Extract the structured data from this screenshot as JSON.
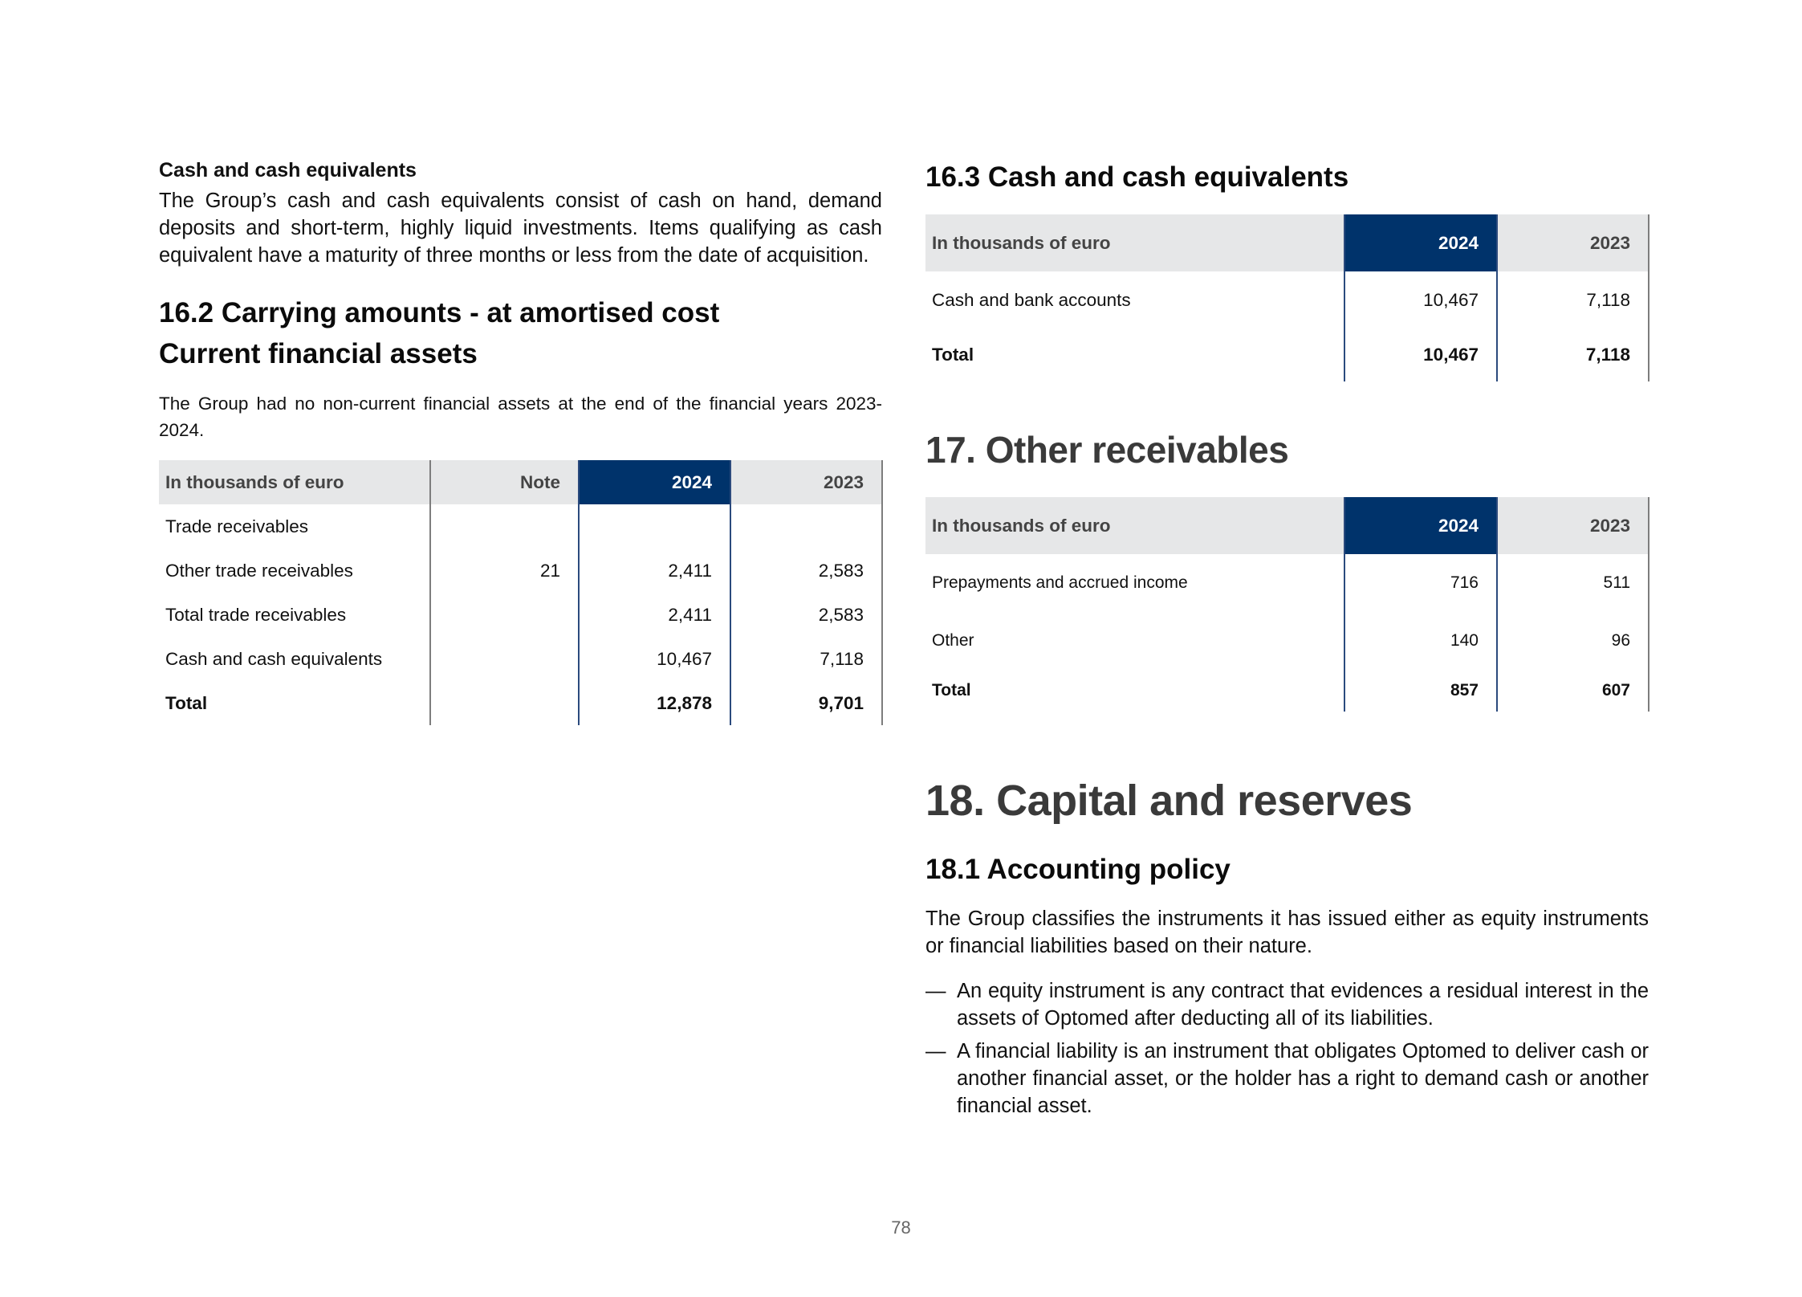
{
  "left": {
    "cash_heading": "Cash and cash equivalents",
    "cash_para": "The Group’s cash and cash equivalents consist of cash on hand, demand deposits and short-term, highly liquid investments. Items qualifying as cash equivalent have a maturity of three months or less from the date of acquisition.",
    "section_title_line1": "16.2 Carrying amounts - at amortised cost",
    "section_title_line2": "Current financial assets",
    "note_para": "The Group had no non-current financial assets at the end of the financial years 2023-2024.",
    "table": {
      "headers": [
        "In thousands of euro",
        "Note",
        "2024",
        "2023"
      ],
      "rows": [
        [
          "Trade receivables",
          "",
          "",
          ""
        ],
        [
          "Other trade receivables",
          "21",
          "2,411",
          "2,583"
        ],
        [
          "Total trade receivables",
          "",
          "2,411",
          "2,583"
        ],
        [
          "Cash and cash equivalents",
          "",
          "10,467",
          "7,118"
        ],
        [
          "Total",
          "",
          "12,878",
          "9,701"
        ]
      ]
    }
  },
  "right": {
    "cash_title": "16.3 Cash and cash equivalents",
    "cash_table": {
      "headers": [
        "In thousands of euro",
        "2024",
        "2023"
      ],
      "rows": [
        [
          "Cash and bank accounts",
          "10,467",
          "7,118"
        ],
        [
          "Total",
          "10,467",
          "7,118"
        ]
      ]
    },
    "receivables_title": "17. Other receivables",
    "receivables_table": {
      "headers": [
        "In thousands of euro",
        "2024",
        "2023"
      ],
      "rows": [
        [
          "Prepayments and accrued income",
          "716",
          "511"
        ],
        [
          "Other",
          "140",
          "96"
        ],
        [
          "Total",
          "857",
          "607"
        ]
      ]
    },
    "capital_title": "18. Capital and reserves",
    "policy_title": "18.1 Accounting policy",
    "policy_para": "The Group classifies the instruments it has issued either as equity instruments or financial liabilities based on their nature.",
    "bullet_char": "—",
    "bullets": [
      "An equity instrument is any contract that evidences a residual interest in the assets of Optomed after deducting all of its liabilities.",
      "A financial liability is an instrument that obligates Optomed to deliver cash or another financial asset, or the holder has   a right to demand cash or another financial asset."
    ]
  },
  "page_number": "78",
  "colors": {
    "header_bg": "#e6e7e8",
    "highlight": "#00336b",
    "title_grey": "#3a3a3a"
  }
}
